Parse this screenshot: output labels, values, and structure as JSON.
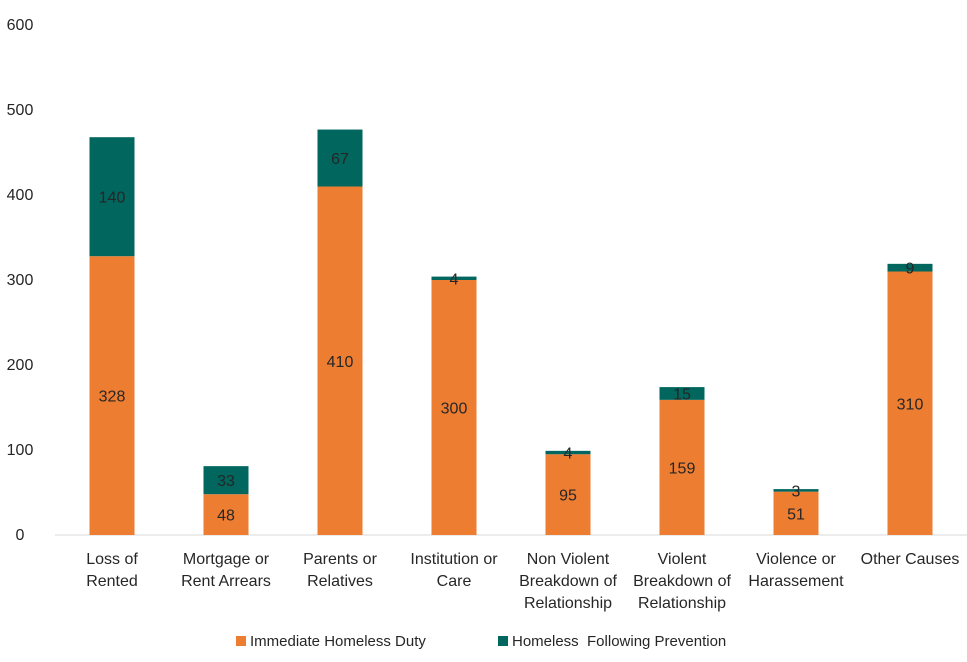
{
  "chart_data": {
    "type": "bar",
    "stacked": true,
    "title": "",
    "xlabel": "",
    "ylabel": "",
    "ylim": [
      0,
      600
    ],
    "yticks": [
      0,
      100,
      200,
      300,
      400,
      500,
      600
    ],
    "grid": false,
    "legend_position": "bottom",
    "categories": [
      [
        "Loss of",
        "Rented"
      ],
      [
        "Mortgage or",
        "Rent Arrears"
      ],
      [
        "Parents or",
        "Relatives"
      ],
      [
        "Institution or",
        "Care"
      ],
      [
        "Non Violent",
        "Breakdown of",
        "Relationship"
      ],
      [
        "Violent",
        "Breakdown of",
        "Relationship"
      ],
      [
        "Violence or",
        "Harassement"
      ],
      [
        "Other Causes"
      ]
    ],
    "series": [
      {
        "name": "Immediate Homeless Duty",
        "color": "#ED7D31",
        "values": [
          328,
          48,
          410,
          300,
          95,
          159,
          51,
          310
        ]
      },
      {
        "name": "Homeless  Following Prevention",
        "color": "#00665E",
        "values": [
          140,
          33,
          67,
          4,
          4,
          15,
          3,
          9
        ]
      }
    ]
  }
}
